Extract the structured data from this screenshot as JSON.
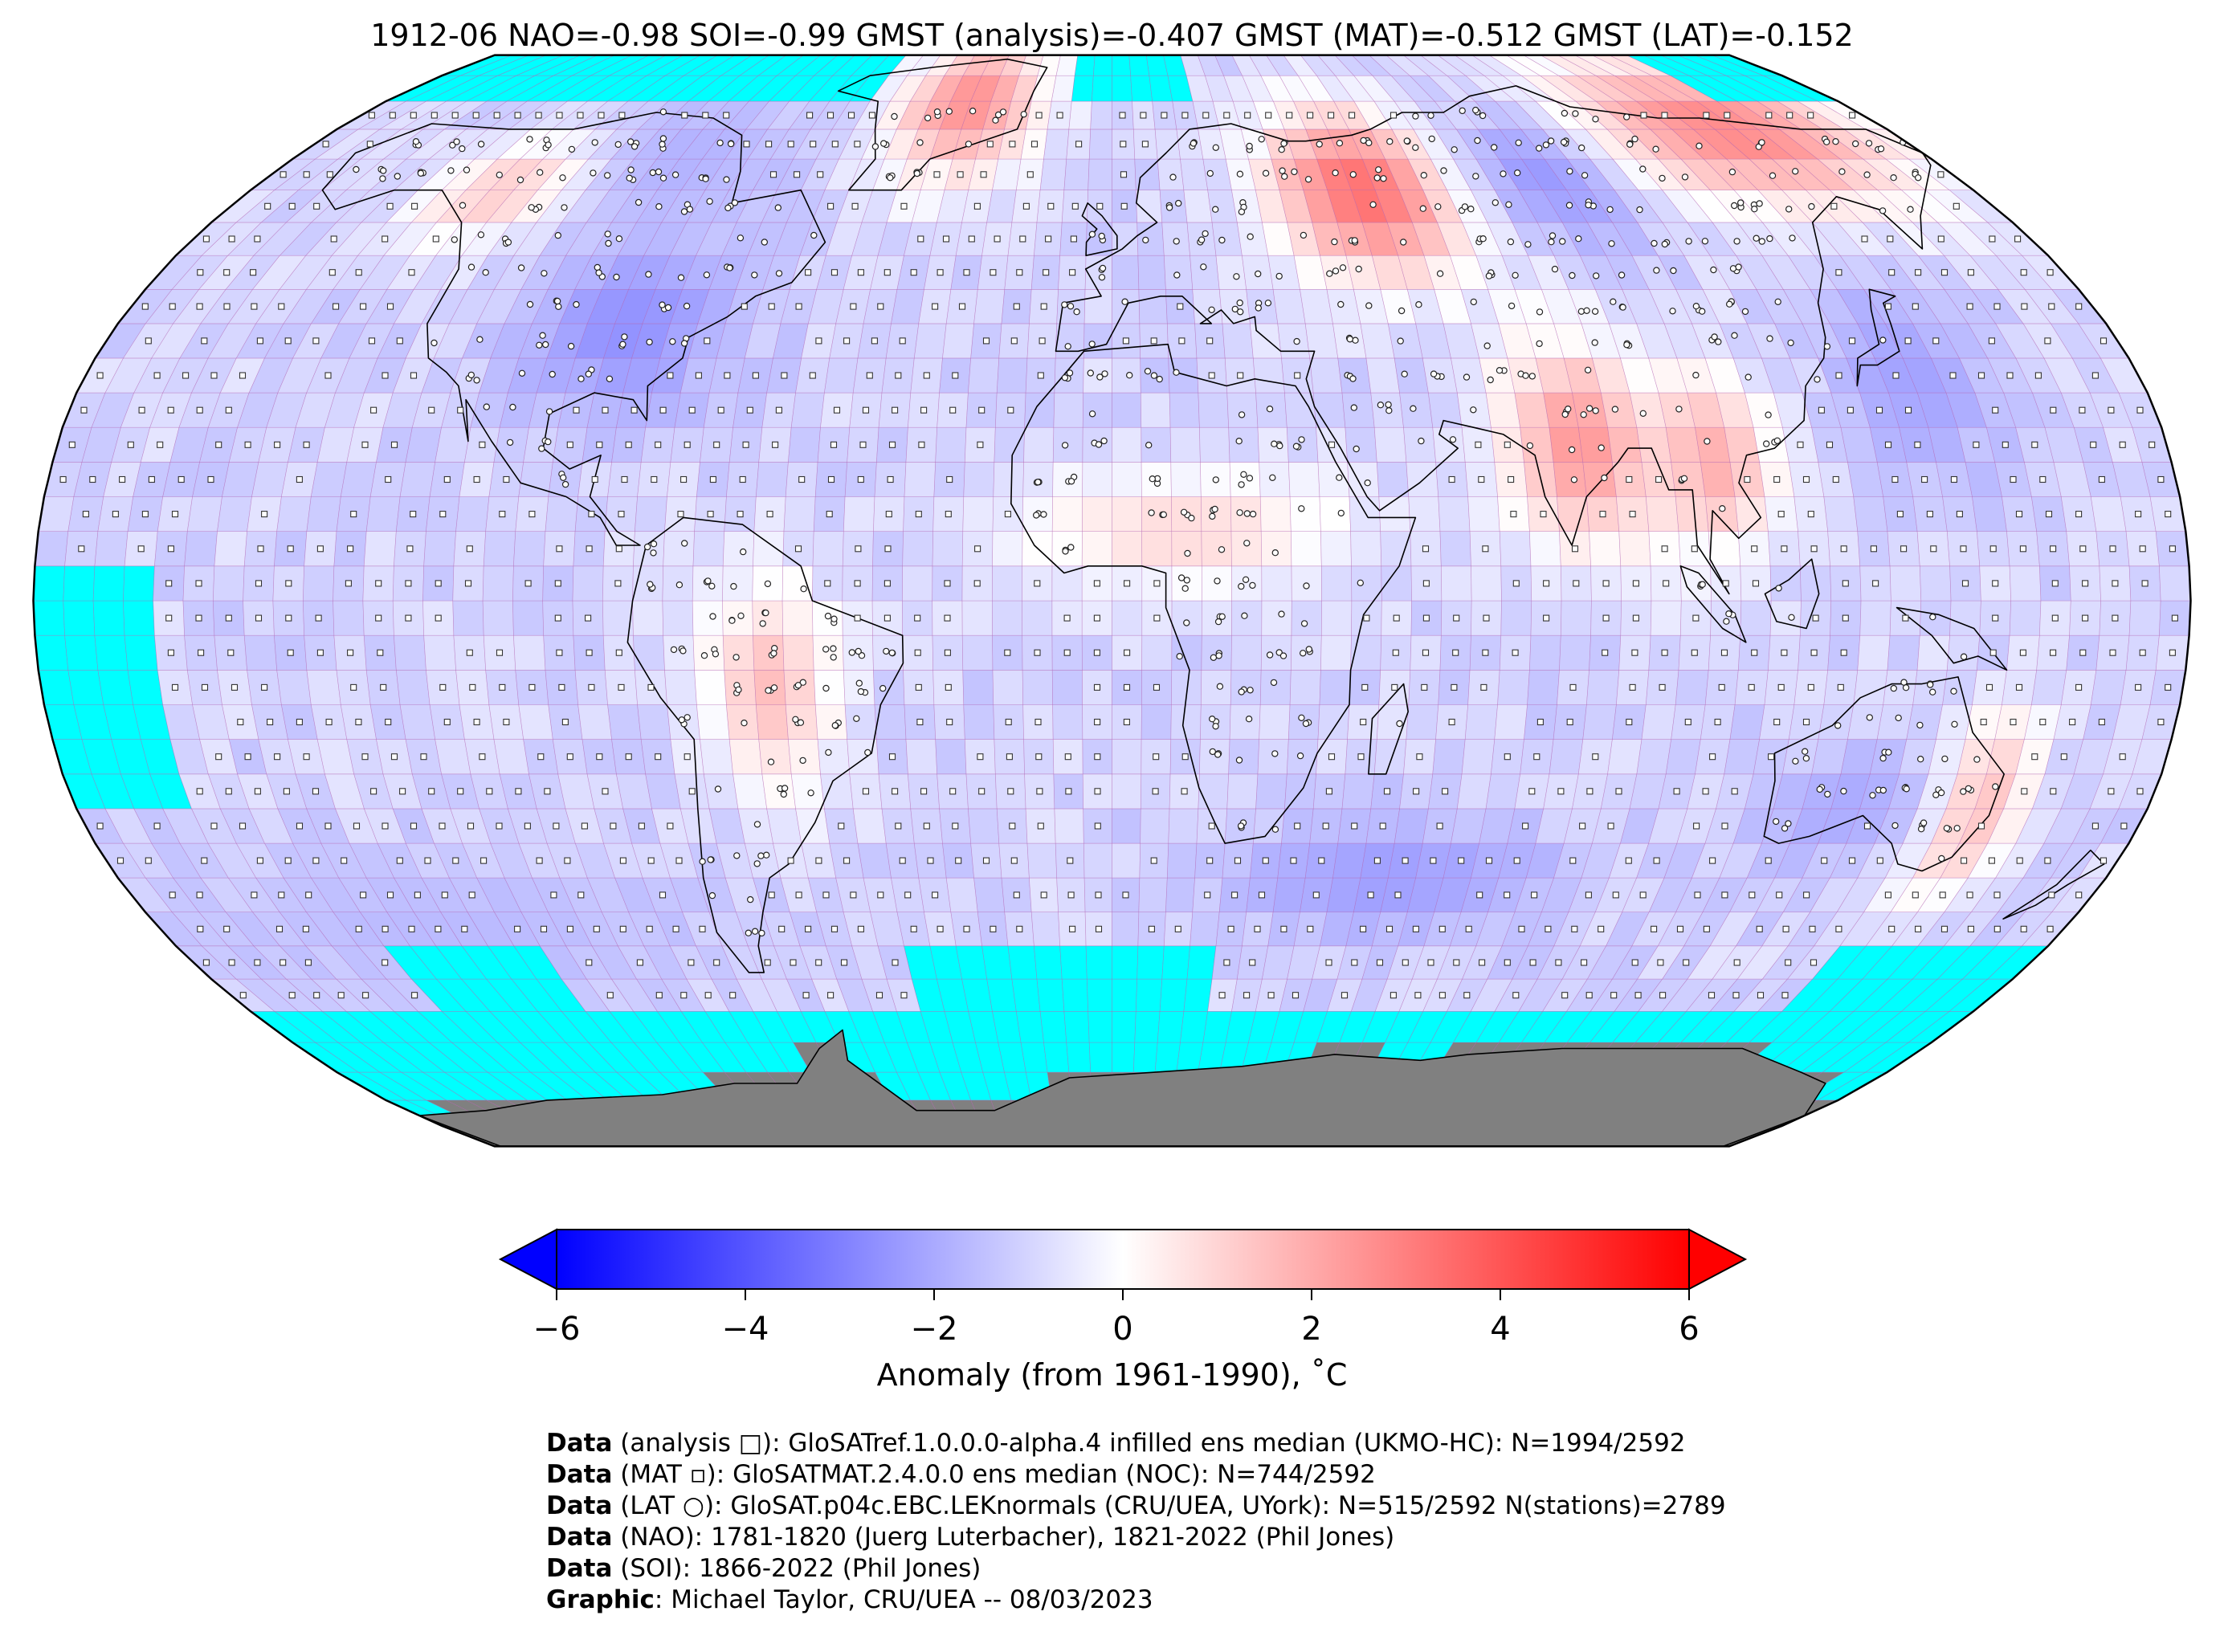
{
  "title": "1912-06 NAO=-0.98 SOI=-0.99 GMST (analysis)=-0.407 GMST (MAT)=-0.512 GMST (LAT)=-0.152",
  "map": {
    "projection": "Robinson",
    "grid_resolution_deg": 5,
    "colors": {
      "no_data": "#00ffff",
      "land_mask": "#808080",
      "neg_max": "#0000ff",
      "zero": "#ffffff",
      "pos_max": "#ff0000",
      "grid_line": "#b060b0"
    },
    "anomaly_regions": [
      {
        "name": "north-america-midwest",
        "lon": [
          -105,
          -70
        ],
        "lat": [
          30,
          50
        ],
        "value": -2.6
      },
      {
        "name": "canada-arctic",
        "lon": [
          -125,
          -70
        ],
        "lat": [
          55,
          75
        ],
        "value": -1.8
      },
      {
        "name": "greenland",
        "lon": [
          -50,
          -20
        ],
        "lat": [
          65,
          85
        ],
        "value": 2.6
      },
      {
        "name": "alaska-nw-canada",
        "lon": [
          -140,
          -115
        ],
        "lat": [
          55,
          65
        ],
        "value": 1.2
      },
      {
        "name": "west-russia",
        "lon": [
          35,
          70
        ],
        "lat": [
          50,
          70
        ],
        "value": 3.4
      },
      {
        "name": "central-siberia",
        "lon": [
          80,
          110
        ],
        "lat": [
          55,
          70
        ],
        "value": -2.8
      },
      {
        "name": "east-siberia",
        "lon": [
          110,
          175
        ],
        "lat": [
          60,
          80
        ],
        "value": 2.8
      },
      {
        "name": "india",
        "lon": [
          70,
          90
        ],
        "lat": [
          10,
          35
        ],
        "value": 2.4
      },
      {
        "name": "southeast-asia",
        "lon": [
          95,
          110
        ],
        "lat": [
          10,
          30
        ],
        "value": 1.9
      },
      {
        "name": "japan-nw-pacific",
        "lon": [
          130,
          150
        ],
        "lat": [
          20,
          45
        ],
        "value": -2.2
      },
      {
        "name": "south-america-interior",
        "lon": [
          -65,
          -50
        ],
        "lat": [
          -25,
          0
        ],
        "value": 1.5
      },
      {
        "name": "sahel",
        "lon": [
          -15,
          40
        ],
        "lat": [
          5,
          15
        ],
        "value": 0.9
      },
      {
        "name": "south-indian-ocean",
        "lon": [
          20,
          80
        ],
        "lat": [
          -45,
          -35
        ],
        "value": -2.3
      },
      {
        "name": "east-australia",
        "lon": [
          145,
          155
        ],
        "lat": [
          -40,
          -20
        ],
        "value": 1.8
      },
      {
        "name": "west-australia",
        "lon": [
          115,
          140
        ],
        "lat": [
          -35,
          -25
        ],
        "value": -2.0
      },
      {
        "name": "southern-ocean-pacific",
        "lon": [
          -180,
          -70
        ],
        "lat": [
          -55,
          -40
        ],
        "value": -1.6
      }
    ]
  },
  "colorbar": {
    "ticks": [
      "−6",
      "−4",
      "−2",
      "0",
      "2",
      "4",
      "6"
    ],
    "label": "Anomaly (from 1961-1990), ˚C"
  },
  "credits": [
    {
      "bold": "Data",
      "text": " (analysis □): GloSATref.1.0.0.0-alpha.4 infilled ens median (UKMO-HC): N=1994/2592"
    },
    {
      "bold": "Data",
      "text": " (MAT ▫): GloSATMAT.2.4.0.0 ens median (NOC): N=744/2592"
    },
    {
      "bold": "Data",
      "text": " (LAT ○): GloSAT.p04c.EBC.LEKnormals (CRU/UEA, UYork): N=515/2592 N(stations)=2789"
    },
    {
      "bold": "Data",
      "text": " (NAO): 1781-1820 (Juerg Luterbacher), 1821-2022 (Phil Jones)"
    },
    {
      "bold": "Data",
      "text": " (SOI): 1866-2022 (Phil Jones)"
    },
    {
      "bold": "Graphic",
      "text": ": Michael Taylor, CRU/UEA -- 08/03/2023"
    }
  ]
}
